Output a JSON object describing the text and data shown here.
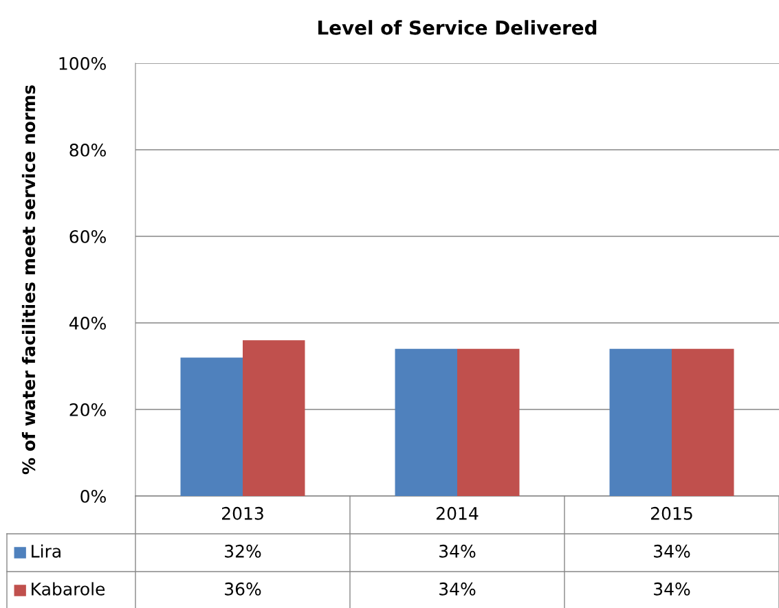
{
  "chart_data": {
    "type": "bar",
    "title": "Level of Service Delivered",
    "ylabel": "% of water facilities meet service norms",
    "categories": [
      "2013",
      "2014",
      "2015"
    ],
    "series": [
      {
        "name": "Lira",
        "color": "#4f81bd",
        "values": [
          32,
          34,
          34
        ],
        "value_labels": [
          "32%",
          "34%",
          "34%"
        ]
      },
      {
        "name": "Kabarole",
        "color": "#c0504d",
        "values": [
          36,
          34,
          34
        ],
        "value_labels": [
          "36%",
          "34%",
          "34%"
        ]
      }
    ],
    "ylim": [
      0,
      100
    ],
    "yticks": [
      {
        "value": 0,
        "label": "0%"
      },
      {
        "value": 20,
        "label": "20%"
      },
      {
        "value": 40,
        "label": "40%"
      },
      {
        "value": 60,
        "label": "60%"
      },
      {
        "value": 80,
        "label": "80%"
      },
      {
        "value": 100,
        "label": "100%"
      }
    ],
    "grid": "y",
    "legend": "bottom"
  }
}
